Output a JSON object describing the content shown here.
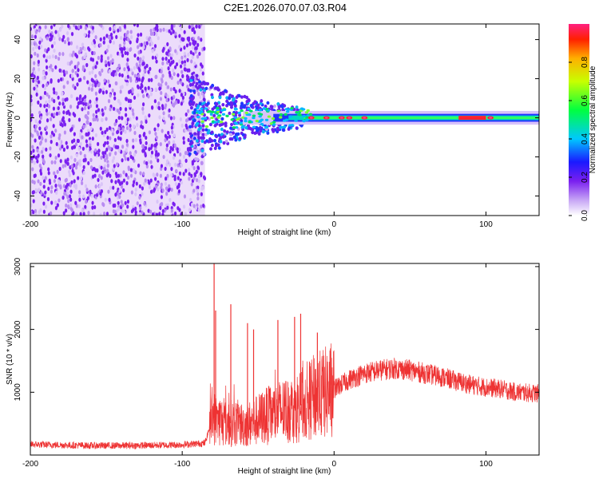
{
  "title": "C2E1.2026.070.07.03.R04",
  "chart_data": [
    {
      "type": "heatmap",
      "xlabel": "Height of straight line (km)",
      "ylabel": "Frequency (Hz)",
      "xlim": [
        -200,
        135
      ],
      "ylim": [
        -50,
        48
      ],
      "xticks": [
        "-200",
        "-100",
        "0",
        "100"
      ],
      "yticks": [
        "40",
        "20",
        "0",
        "-20",
        "-40"
      ],
      "colorbar": {
        "label": "Normalized spectral amplitude",
        "ticks": [
          "0.0",
          "0.2",
          "0.4",
          "0.6",
          "0.8"
        ],
        "range": [
          0,
          1
        ]
      },
      "description_regions": {
        "noise_band_x": [
          -200,
          -85
        ],
        "transition_x": [
          -95,
          -20
        ],
        "tone_frequency_hz": 0,
        "hot_spots_x": [
          -15,
          -5,
          5,
          10,
          20,
          85,
          95,
          103
        ]
      }
    },
    {
      "type": "line",
      "xlabel": "Height of straight line (km)",
      "ylabel": "SNR (10 * v/v)",
      "xlim": [
        -200,
        135
      ],
      "ylim": [
        0,
        3050
      ],
      "xticks": [
        "-200",
        "-100",
        "0",
        "100"
      ],
      "yticks": [
        "3000",
        "2000",
        "1000"
      ],
      "series": [
        {
          "name": "SNR",
          "color": "#ee3333",
          "x": [
            -200,
            -180,
            -160,
            -140,
            -120,
            -100,
            -85,
            -80,
            -75,
            -70,
            -65,
            -60,
            -55,
            -50,
            -45,
            -40,
            -35,
            -30,
            -25,
            -20,
            -15,
            -10,
            -5,
            0,
            10,
            20,
            30,
            40,
            50,
            60,
            70,
            80,
            90,
            100,
            110,
            120,
            135
          ],
          "mean": [
            170,
            160,
            150,
            150,
            155,
            165,
            190,
            600,
            550,
            500,
            520,
            480,
            500,
            560,
            620,
            650,
            700,
            720,
            750,
            820,
            900,
            950,
            1000,
            1050,
            1200,
            1300,
            1350,
            1380,
            1350,
            1300,
            1250,
            1180,
            1120,
            1080,
            1050,
            1000,
            980
          ],
          "peaks": [
            {
              "x": -79,
              "y": 3050
            },
            {
              "x": -78,
              "y": 2300
            },
            {
              "x": -68,
              "y": 2400
            },
            {
              "x": -57,
              "y": 2100
            },
            {
              "x": -53,
              "y": 2000
            },
            {
              "x": -37,
              "y": 2150
            },
            {
              "x": -26,
              "y": 2200
            },
            {
              "x": -22,
              "y": 2250
            },
            {
              "x": -11,
              "y": 1950
            }
          ]
        }
      ]
    }
  ]
}
